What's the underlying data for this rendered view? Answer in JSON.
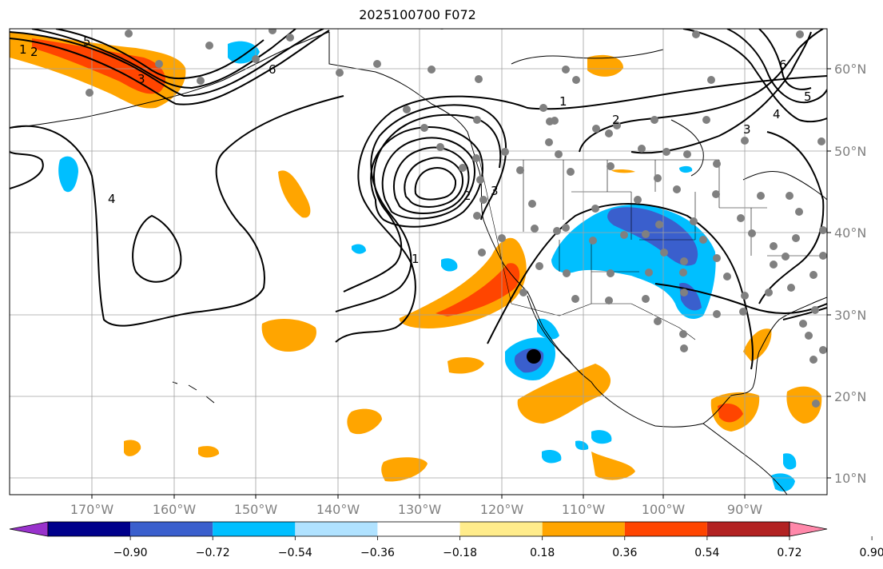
{
  "title": "2025100700 F072",
  "colors": {
    "background": "#ffffff",
    "grid": "#a0a0a0",
    "station": "#808080",
    "marker": "#000000",
    "axis_label": "#808080"
  },
  "map": {
    "lon_labels": [
      "170°W",
      "160°W",
      "150°W",
      "140°W",
      "130°W",
      "120°W",
      "110°W",
      "100°W",
      "90°W"
    ],
    "lat_labels": [
      "60°N",
      "50°N",
      "40°N",
      "30°N",
      "20°N",
      "10°N"
    ],
    "contour_labels": [
      "1",
      "2",
      "3",
      "4",
      "5",
      "6",
      "1",
      "2",
      "3",
      "4",
      "5",
      "6",
      "1",
      "2",
      "3"
    ],
    "marker_name": "point-of-interest"
  },
  "colorbar": {
    "colors": [
      "#9932cc",
      "#00008b",
      "#3a5fcd",
      "#00bfff",
      "#b0e2ff",
      "#ffffff",
      "#ffec8b",
      "#ffa500",
      "#ff4500",
      "#b22222",
      "#ff88aa"
    ],
    "tick_labels": [
      "−0.90",
      "−0.72",
      "−0.54",
      "−0.36",
      "−0.18",
      "0.18",
      "0.36",
      "0.54",
      "0.72",
      "0.90"
    ]
  }
}
